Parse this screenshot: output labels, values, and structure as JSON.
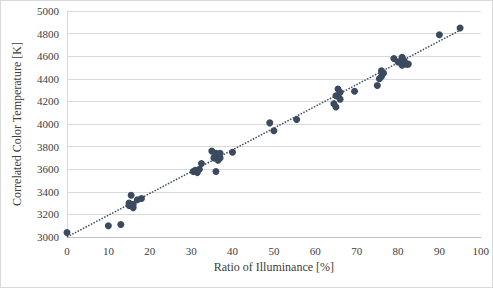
{
  "chart_data": {
    "type": "scatter",
    "x_label": "Ratio of Illuminance [%]",
    "y_label": "Correlated Color Temperature [K]",
    "xlim": [
      0,
      100
    ],
    "xticks": [
      0,
      10,
      20,
      30,
      40,
      50,
      60,
      70,
      80,
      90,
      100
    ],
    "ylim": [
      3000,
      5000
    ],
    "yticks": [
      3000,
      3200,
      3400,
      3600,
      3800,
      4000,
      4200,
      4400,
      4600,
      4800,
      5000
    ],
    "grid": true,
    "series": [
      {
        "type": "scatter",
        "marker": "circle",
        "color": "#3b4a5e",
        "x": [
          0,
          10,
          13,
          15,
          15,
          15.5,
          16,
          16,
          17,
          18,
          30.5,
          31,
          31.5,
          32,
          32.5,
          35,
          35.5,
          36,
          36,
          36.5,
          37,
          37,
          40,
          49,
          50,
          55.5,
          64.5,
          65,
          65,
          65.5,
          66,
          66,
          69.5,
          75,
          75.5,
          76,
          76,
          76.5,
          79,
          80,
          81,
          81,
          81.5,
          82,
          82.5,
          90,
          95
        ],
        "values": [
          3040,
          3100,
          3110,
          3280,
          3300,
          3370,
          3260,
          3290,
          3330,
          3340,
          3580,
          3590,
          3570,
          3600,
          3650,
          3760,
          3700,
          3740,
          3580,
          3680,
          3700,
          3740,
          3750,
          4010,
          3940,
          4040,
          4180,
          4150,
          4250,
          4310,
          4220,
          4280,
          4290,
          4340,
          4400,
          4420,
          4470,
          4450,
          4580,
          4550,
          4590,
          4520,
          4560,
          4530,
          4530,
          4790,
          4850
        ]
      },
      {
        "type": "line",
        "line_style": "dotted",
        "color": "#3b4a5e",
        "x": [
          0,
          95
        ],
        "values": [
          3000,
          4830
        ]
      }
    ]
  }
}
